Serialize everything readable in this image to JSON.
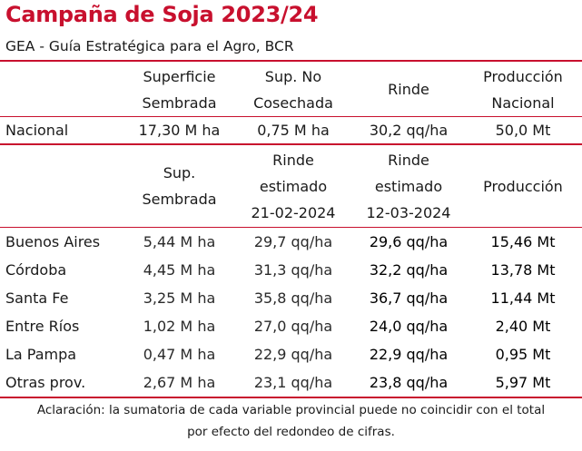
{
  "title": "Campaña de Soja 2023/24",
  "subtitle": "GEA - Guía Estratégica para el Agro, BCR",
  "colors": {
    "accent": "#c8102e",
    "text": "#1a1a1a"
  },
  "national_table": {
    "headers": [
      [
        "Superficie",
        "Sembrada"
      ],
      [
        "Sup. No",
        "Cosechada"
      ],
      [
        "Rinde"
      ],
      [
        "Producción",
        "Nacional"
      ]
    ],
    "row": {
      "label": "Nacional",
      "values": [
        "17,30 M ha",
        "0,75 M ha",
        "30,2 qq/ha",
        "50,0 Mt"
      ]
    }
  },
  "provincial_table": {
    "headers": [
      [
        "Sup.",
        "Sembrada"
      ],
      [
        "Rinde",
        "estimado",
        "21-02-2024"
      ],
      [
        "Rinde",
        "estimado",
        "12-03-2024"
      ],
      [
        "Producción"
      ]
    ],
    "rows": [
      {
        "label": "Buenos Aires",
        "values": [
          "5,44 M ha",
          "29,7 qq/ha",
          "29,6 qq/ha",
          "15,46 Mt"
        ]
      },
      {
        "label": "Córdoba",
        "values": [
          "4,45 M ha",
          "31,3 qq/ha",
          "32,2 qq/ha",
          "13,78 Mt"
        ]
      },
      {
        "label": "Santa Fe",
        "values": [
          "3,25 M ha",
          "35,8 qq/ha",
          "36,7 qq/ha",
          "11,44 Mt"
        ]
      },
      {
        "label": "Entre Ríos",
        "values": [
          "1,02 M ha",
          "27,0 qq/ha",
          "24,0 qq/ha",
          "2,40 Mt"
        ]
      },
      {
        "label": "La Pampa",
        "values": [
          "0,47 M ha",
          "22,9 qq/ha",
          "22,9 qq/ha",
          "0,95 Mt"
        ]
      },
      {
        "label": "Otras prov.",
        "values": [
          "2,67 M ha",
          "23,1 qq/ha",
          "23,8 qq/ha",
          "5,97 Mt"
        ]
      }
    ]
  },
  "footnote": [
    "Aclaración: la sumatoria de cada variable provincial puede no coincidir con el total",
    "por efecto del redondeo de cifras."
  ]
}
